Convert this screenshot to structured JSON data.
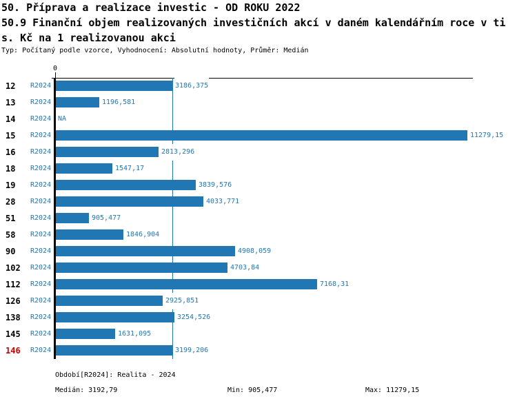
{
  "header": {
    "title_line1": "50. Příprava a realizace investic - OD ROKU 2022",
    "title_line2": "50.9 Finanční objem realizovaných investičních akcí v daném kalendářním roce v ti",
    "title_line3": "s. Kč na 1 realizovanou akci",
    "meta": "Typ: Počítaný podle vzorce, Vyhodnocení: Absolutní hodnoty, Průměr: Medián"
  },
  "chart_data": {
    "type": "bar",
    "orientation": "horizontal",
    "series_name": "R2024",
    "categories": [
      "12",
      "13",
      "14",
      "15",
      "16",
      "18",
      "19",
      "28",
      "51",
      "58",
      "90",
      "102",
      "112",
      "126",
      "138",
      "145",
      "146"
    ],
    "values": [
      3186.375,
      1196.581,
      null,
      11279.15,
      2813.296,
      1547.17,
      3839.576,
      4033.771,
      905.477,
      1846.904,
      4908.059,
      4703.84,
      7168.31,
      2925.851,
      3254.526,
      1631.095,
      3199.206
    ],
    "value_labels": [
      "3186,375",
      "1196,581",
      "NA",
      "11279,15",
      "2813,296",
      "1547,17",
      "3839,576",
      "4033,771",
      "905,477",
      "1846,904",
      "4908,059",
      "4703,84",
      "7168,31",
      "2925,851",
      "3254,526",
      "1631,095",
      "3199,206"
    ],
    "na_text": "NA",
    "highlighted_category": "146",
    "median_line_value": 3192.79,
    "x_axis": {
      "zero_label": "0",
      "min": 0,
      "max": 11279.15
    },
    "grid": false,
    "legend": false
  },
  "footer": {
    "period": "Období[R2024]: Realita - 2024",
    "median": "Medián: 3192,79",
    "min": "Min: 905,477",
    "max": "Max: 11279,15"
  },
  "colors": {
    "bar_blue": "#2077b4",
    "text_blue": "#2077b4",
    "highlight_red": "#cc0000",
    "axis_black": "#000000"
  }
}
